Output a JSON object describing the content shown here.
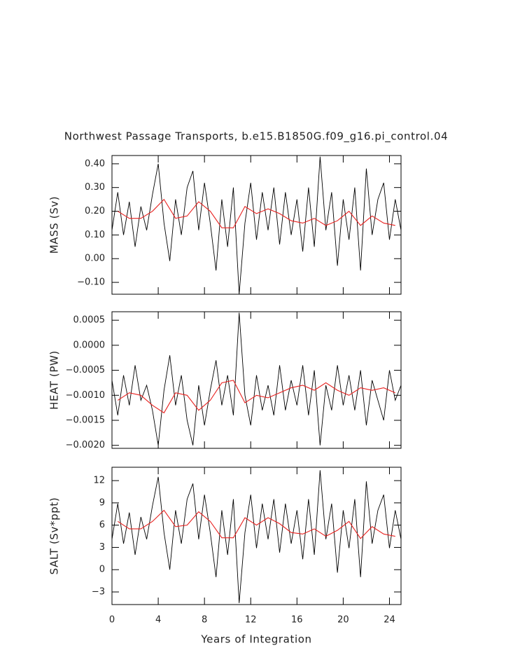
{
  "title": "Northwest Passage Transports, b.e15.B1850G.f09_g16.pi_control.04",
  "chart_data": [
    {
      "type": "line",
      "ylabel": "MASS (Sv)",
      "xlim": [
        0,
        25
      ],
      "xticks": [
        0,
        4,
        8,
        12,
        16,
        20,
        24
      ],
      "ylim": [
        -0.15,
        0.435
      ],
      "yticks": [
        {
          "value": 0.4,
          "label": "0.40"
        },
        {
          "value": 0.3,
          "label": "0.30"
        },
        {
          "value": 0.2,
          "label": "0.20"
        },
        {
          "value": 0.1,
          "label": "0.10"
        },
        {
          "value": 0,
          "label": "0.00"
        },
        {
          "value": -0.1,
          "label": "−0.10"
        }
      ],
      "series": [
        {
          "color": "#000000",
          "x": [
            0,
            0.5,
            1,
            1.5,
            2,
            2.5,
            3,
            3.5,
            4,
            4.5,
            5,
            5.5,
            6,
            6.5,
            7,
            7.5,
            8,
            8.5,
            9,
            9.5,
            10,
            10.5,
            11,
            11.5,
            12,
            12.5,
            13,
            13.5,
            14,
            14.5,
            15,
            15.5,
            16,
            16.5,
            17,
            17.5,
            18,
            18.5,
            19,
            19.5,
            20,
            20.5,
            21,
            21.5,
            22,
            22.5,
            23,
            23.5,
            24,
            24.5,
            25
          ],
          "values": [
            0.12,
            0.28,
            0.1,
            0.24,
            0.05,
            0.22,
            0.12,
            0.27,
            0.4,
            0.15,
            -0.01,
            0.25,
            0.1,
            0.3,
            0.37,
            0.12,
            0.32,
            0.15,
            -0.05,
            0.25,
            0.05,
            0.3,
            -0.15,
            0.15,
            0.32,
            0.08,
            0.28,
            0.12,
            0.3,
            0.06,
            0.28,
            0.1,
            0.25,
            0.03,
            0.3,
            0.05,
            0.43,
            0.12,
            0.28,
            -0.03,
            0.25,
            0.08,
            0.3,
            -0.05,
            0.38,
            0.1,
            0.25,
            0.32,
            0.08,
            0.25,
            0.12
          ]
        },
        {
          "color": "#e8201e",
          "x": [
            0.5,
            1.5,
            2.5,
            3.5,
            4.5,
            5.5,
            6.5,
            7.5,
            8.5,
            9.5,
            10.5,
            11.5,
            12.5,
            13.5,
            14.5,
            15.5,
            16.5,
            17.5,
            18.5,
            19.5,
            20.5,
            21.5,
            22.5,
            23.5,
            24.5
          ],
          "values": [
            0.2,
            0.17,
            0.17,
            0.2,
            0.25,
            0.17,
            0.18,
            0.24,
            0.2,
            0.13,
            0.13,
            0.22,
            0.19,
            0.21,
            0.19,
            0.16,
            0.15,
            0.17,
            0.14,
            0.16,
            0.2,
            0.14,
            0.18,
            0.15,
            0.14
          ]
        }
      ]
    },
    {
      "type": "line",
      "ylabel": "HEAT (PW)",
      "xlim": [
        0,
        25
      ],
      "xticks": [
        0,
        4,
        8,
        12,
        16,
        20,
        24
      ],
      "ylim": [
        -0.00206,
        0.00067
      ],
      "yticks": [
        0.0005,
        {
          "value": 0,
          "label": "0.0000"
        },
        {
          "value": -0.0005,
          "label": "−0.0005"
        },
        {
          "value": -0.001,
          "label": "−0.0010"
        },
        {
          "value": -0.0015,
          "label": "−0.0015"
        },
        {
          "value": -0.002,
          "label": "−0.0020"
        }
      ],
      "series": [
        {
          "color": "#000000",
          "x": [
            0,
            0.5,
            1,
            1.5,
            2,
            2.5,
            3,
            3.5,
            4,
            4.5,
            5,
            5.5,
            6,
            6.5,
            7,
            7.5,
            8,
            8.5,
            9,
            9.5,
            10,
            10.5,
            11,
            11.5,
            12,
            12.5,
            13,
            13.5,
            14,
            14.5,
            15,
            15.5,
            16,
            16.5,
            17,
            17.5,
            18,
            18.5,
            19,
            19.5,
            20,
            20.5,
            21,
            21.5,
            22,
            22.5,
            23,
            23.5,
            24,
            24.5,
            25
          ],
          "values": [
            -0.0007,
            -0.0014,
            -0.0006,
            -0.0012,
            -0.0004,
            -0.0011,
            -0.0008,
            -0.0013,
            -0.002,
            -0.0009,
            -0.0002,
            -0.0012,
            -0.0006,
            -0.0015,
            -0.002,
            -0.0008,
            -0.0016,
            -0.0009,
            -0.0003,
            -0.0012,
            -0.0006,
            -0.0014,
            0.00065,
            -0.001,
            -0.0016,
            -0.0006,
            -0.0013,
            -0.0008,
            -0.0014,
            -0.0004,
            -0.0013,
            -0.0007,
            -0.0012,
            -0.0004,
            -0.0014,
            -0.0005,
            -0.002,
            -0.0008,
            -0.0013,
            -0.0004,
            -0.0012,
            -0.0006,
            -0.0013,
            -0.0005,
            -0.0016,
            -0.0007,
            -0.0011,
            -0.0015,
            -0.0005,
            -0.0011,
            -0.0008
          ]
        },
        {
          "color": "#e8201e",
          "x": [
            0.5,
            1.5,
            2.5,
            3.5,
            4.5,
            5.5,
            6.5,
            7.5,
            8.5,
            9.5,
            10.5,
            11.5,
            12.5,
            13.5,
            14.5,
            15.5,
            16.5,
            17.5,
            18.5,
            19.5,
            20.5,
            21.5,
            22.5,
            23.5,
            24.5
          ],
          "values": [
            -0.0011,
            -0.00095,
            -0.001,
            -0.0012,
            -0.00135,
            -0.00095,
            -0.001,
            -0.0013,
            -0.0011,
            -0.00075,
            -0.0007,
            -0.00115,
            -0.001,
            -0.00105,
            -0.00095,
            -0.00085,
            -0.0008,
            -0.0009,
            -0.00075,
            -0.0009,
            -0.001,
            -0.00085,
            -0.0009,
            -0.00085,
            -0.00095
          ]
        }
      ]
    },
    {
      "type": "line",
      "ylabel": "SALT (Sv*ppt)",
      "xlabel": "Years of Integration",
      "xlim": [
        0,
        25
      ],
      "xticks": [
        0,
        4,
        8,
        12,
        16,
        20,
        24
      ],
      "ylim": [
        -4.7,
        13.8
      ],
      "yticks": [
        12,
        9,
        6,
        3,
        0,
        {
          "value": -3,
          "label": "−3"
        }
      ],
      "series": [
        {
          "color": "#000000",
          "x": [
            0,
            0.5,
            1,
            1.5,
            2,
            2.5,
            3,
            3.5,
            4,
            4.5,
            5,
            5.5,
            6,
            6.5,
            7,
            7.5,
            8,
            8.5,
            9,
            9.5,
            10,
            10.5,
            11,
            11.5,
            12,
            12.5,
            13,
            13.5,
            14,
            14.5,
            15,
            15.5,
            16,
            16.5,
            17,
            17.5,
            18,
            18.5,
            19,
            19.5,
            20,
            20.5,
            21,
            21.5,
            22,
            22.5,
            23,
            23.5,
            24,
            24.5,
            25
          ],
          "values": [
            4.1,
            8.9,
            3.5,
            7.7,
            2,
            7.1,
            4.1,
            8.6,
            12.5,
            5,
            0,
            8,
            3.5,
            9.5,
            11.6,
            4.1,
            10.1,
            5,
            -1,
            8,
            2,
            9.5,
            -4.5,
            5,
            10.1,
            2.9,
            8.9,
            4.1,
            9.5,
            2.3,
            8.9,
            3.5,
            8,
            1.4,
            9.5,
            2,
            13.4,
            4.1,
            8.9,
            -0.4,
            8,
            2.9,
            9.5,
            -1,
            11.9,
            3.5,
            8,
            10.1,
            2.9,
            8,
            4.1
          ]
        },
        {
          "color": "#e8201e",
          "x": [
            0.5,
            1.5,
            2.5,
            3.5,
            4.5,
            5.5,
            6.5,
            7.5,
            8.5,
            9.5,
            10.5,
            11.5,
            12.5,
            13.5,
            14.5,
            15.5,
            16.5,
            17.5,
            18.5,
            19.5,
            20.5,
            21.5,
            22.5,
            23.5,
            24.5
          ],
          "values": [
            6.5,
            5.5,
            5.5,
            6.5,
            8,
            5.8,
            6,
            7.8,
            6.5,
            4.3,
            4.3,
            7,
            6,
            7,
            6.2,
            5,
            4.8,
            5.5,
            4.5,
            5.3,
            6.5,
            4.2,
            5.8,
            4.8,
            4.5
          ]
        }
      ]
    }
  ]
}
